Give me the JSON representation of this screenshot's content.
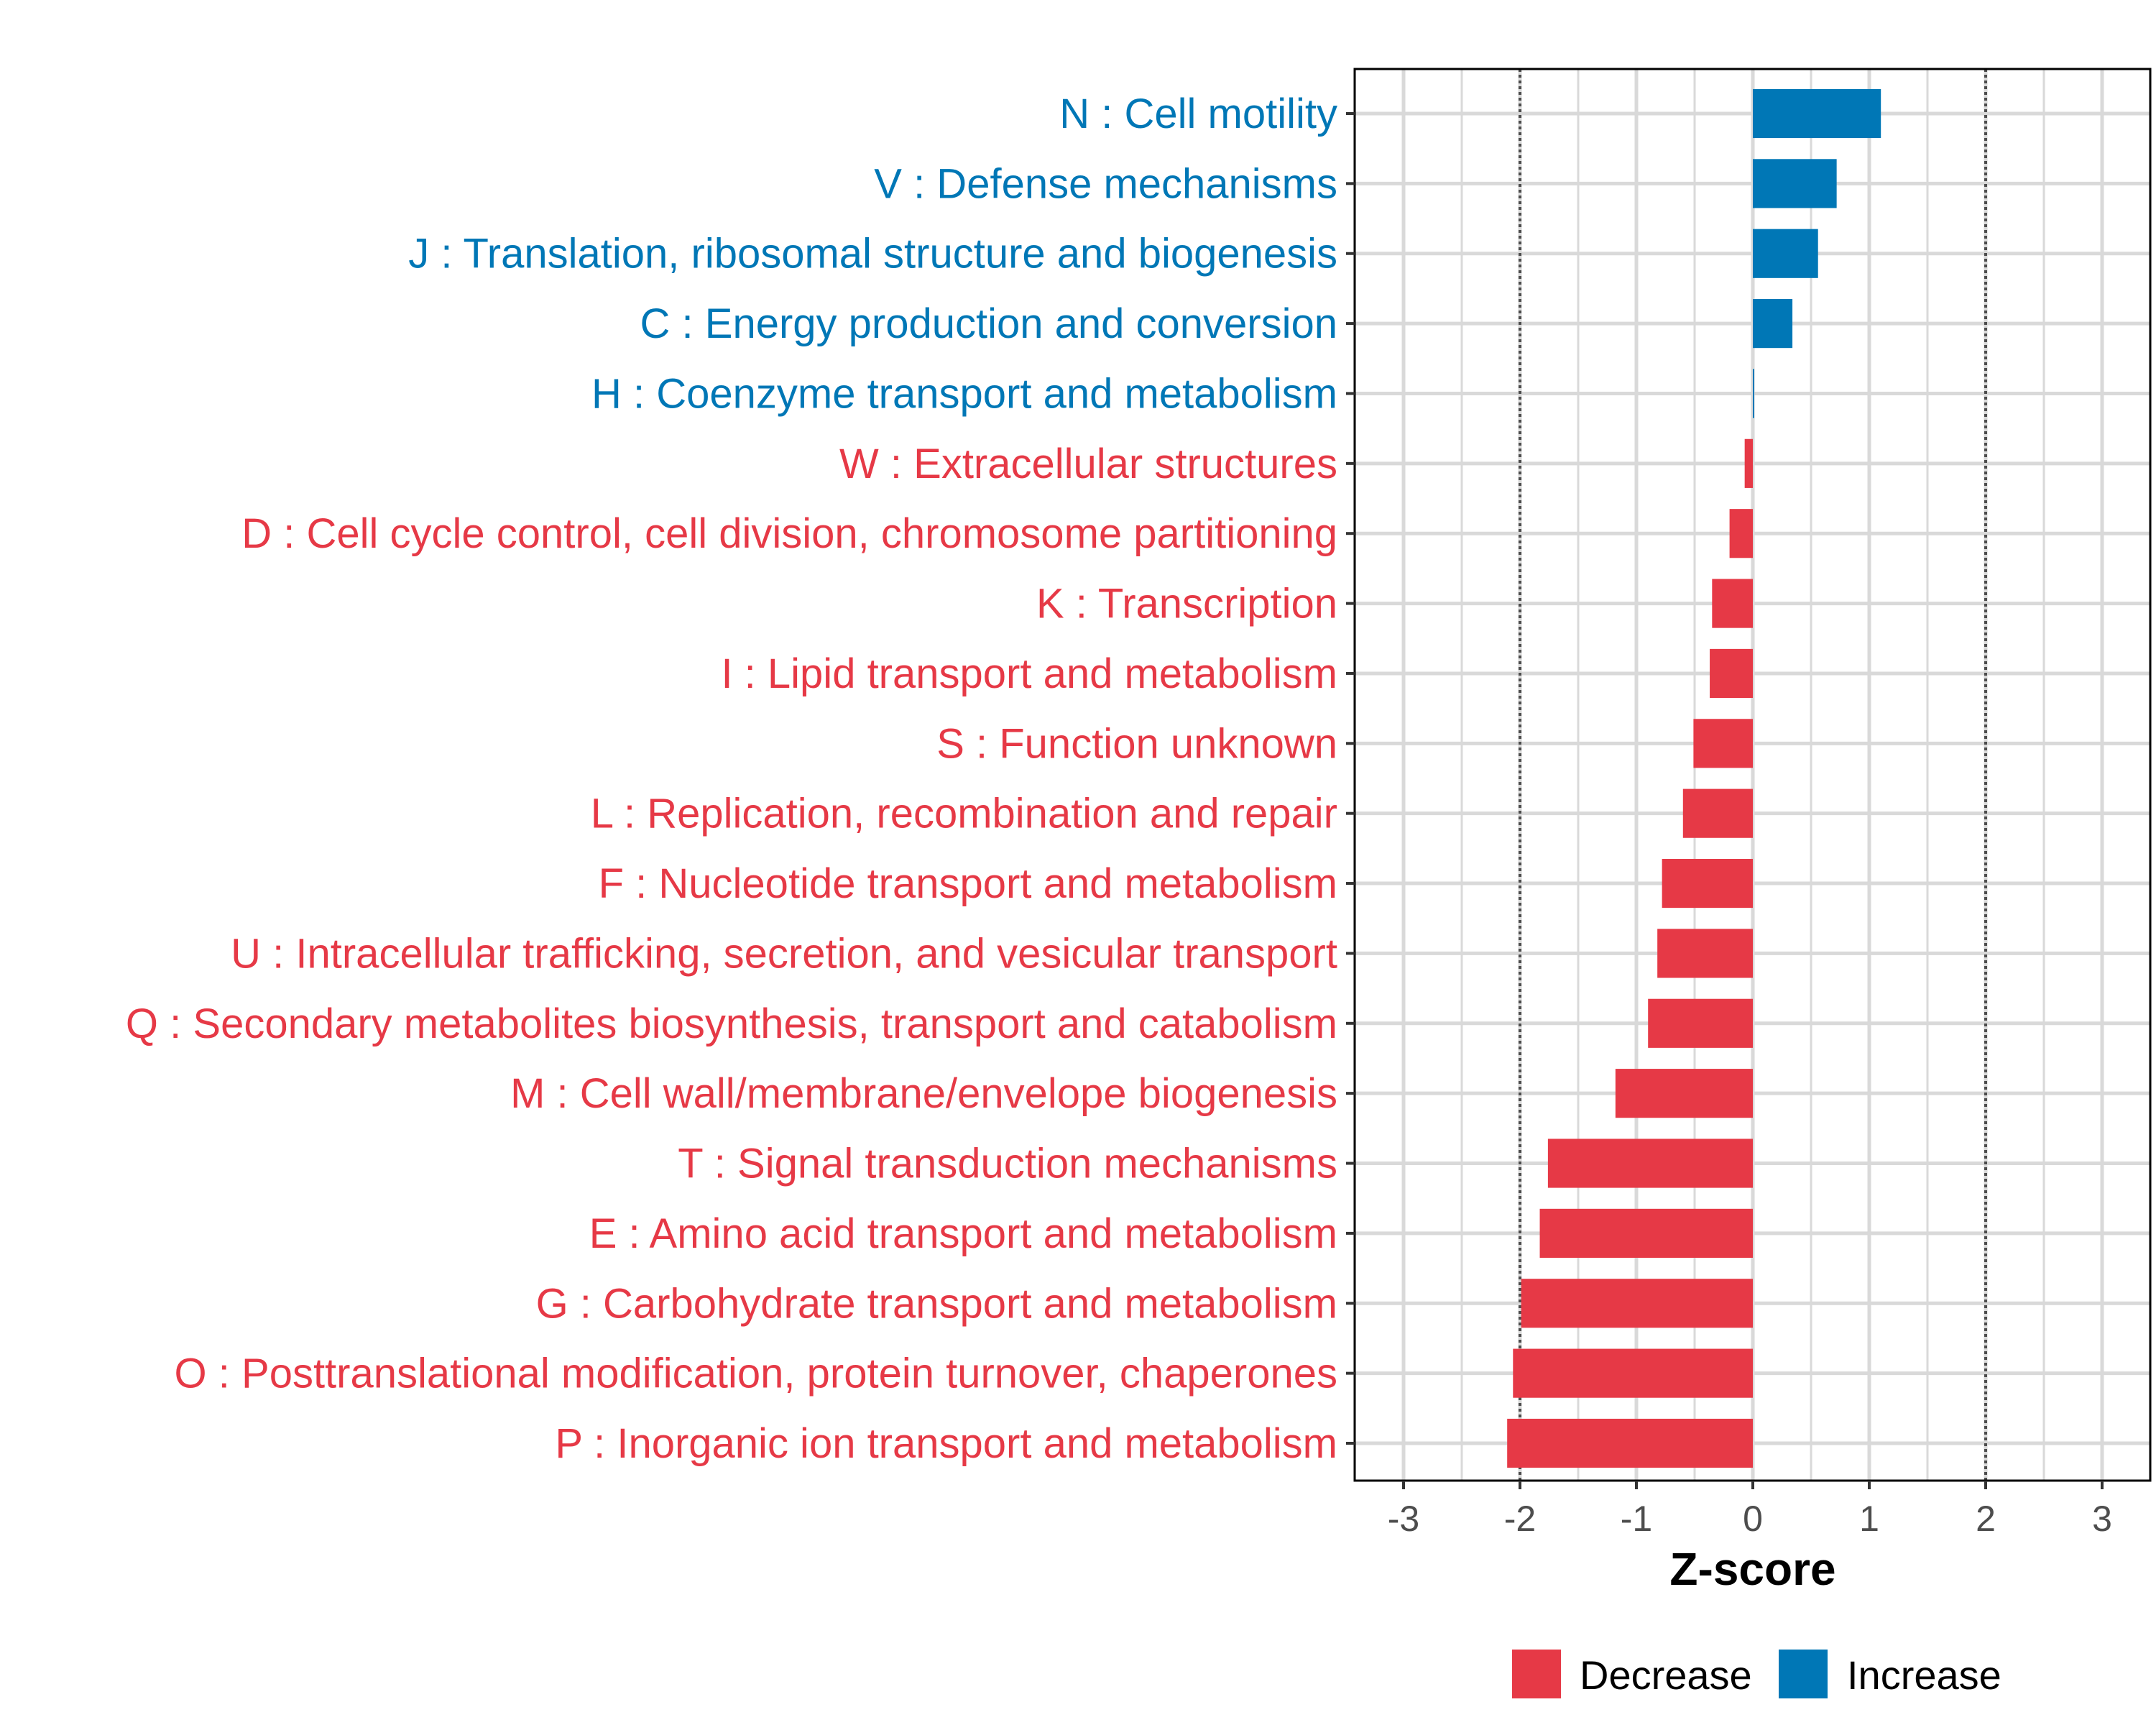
{
  "chart_data": {
    "type": "bar",
    "orientation": "horizontal",
    "title": "",
    "xlabel": "Z-score",
    "ylabel": "",
    "xlim": [
      -3.4,
      3.4
    ],
    "xticks": [
      -3,
      -2,
      -1,
      0,
      1,
      2,
      3
    ],
    "xtick_labels": [
      "-3",
      "-2",
      "-1",
      "0",
      "1",
      "2",
      "3"
    ],
    "reference_lines": [
      -2,
      2
    ],
    "grid": true,
    "legend_position": "bottom",
    "colors": {
      "Decrease": "#E63946",
      "Increase": "#0077B6"
    },
    "legend": [
      {
        "label": "Decrease",
        "color": "#E63946"
      },
      {
        "label": "Increase",
        "color": "#0077B6"
      }
    ],
    "categories": [
      "N : Cell motility",
      "V : Defense mechanisms",
      "J : Translation, ribosomal structure and biogenesis",
      "C : Energy production and conversion",
      "H : Coenzyme transport and metabolism",
      "W : Extracellular structures",
      "D : Cell cycle control, cell division, chromosome partitioning",
      "K : Transcription",
      "I : Lipid transport and metabolism",
      "S : Function unknown",
      "L : Replication, recombination and repair",
      "F : Nucleotide transport and metabolism",
      "U : Intracellular trafficking, secretion, and vesicular transport",
      "Q : Secondary metabolites biosynthesis, transport and catabolism",
      "M : Cell wall/membrane/envelope biogenesis",
      "T : Signal transduction mechanisms",
      "E : Amino acid transport and metabolism",
      "G : Carbohydrate transport and metabolism",
      "O : Posttranslational modification, protein turnover, chaperones",
      "P : Inorganic ion transport and metabolism"
    ],
    "values": [
      1.1,
      0.72,
      0.56,
      0.34,
      0.01,
      -0.07,
      -0.2,
      -0.35,
      -0.37,
      -0.51,
      -0.6,
      -0.78,
      -0.82,
      -0.9,
      -1.18,
      -1.76,
      -1.83,
      -1.99,
      -2.06,
      -2.11
    ],
    "groups": [
      "Increase",
      "Increase",
      "Increase",
      "Increase",
      "Increase",
      "Decrease",
      "Decrease",
      "Decrease",
      "Decrease",
      "Decrease",
      "Decrease",
      "Decrease",
      "Decrease",
      "Decrease",
      "Decrease",
      "Decrease",
      "Decrease",
      "Decrease",
      "Decrease",
      "Decrease"
    ]
  }
}
